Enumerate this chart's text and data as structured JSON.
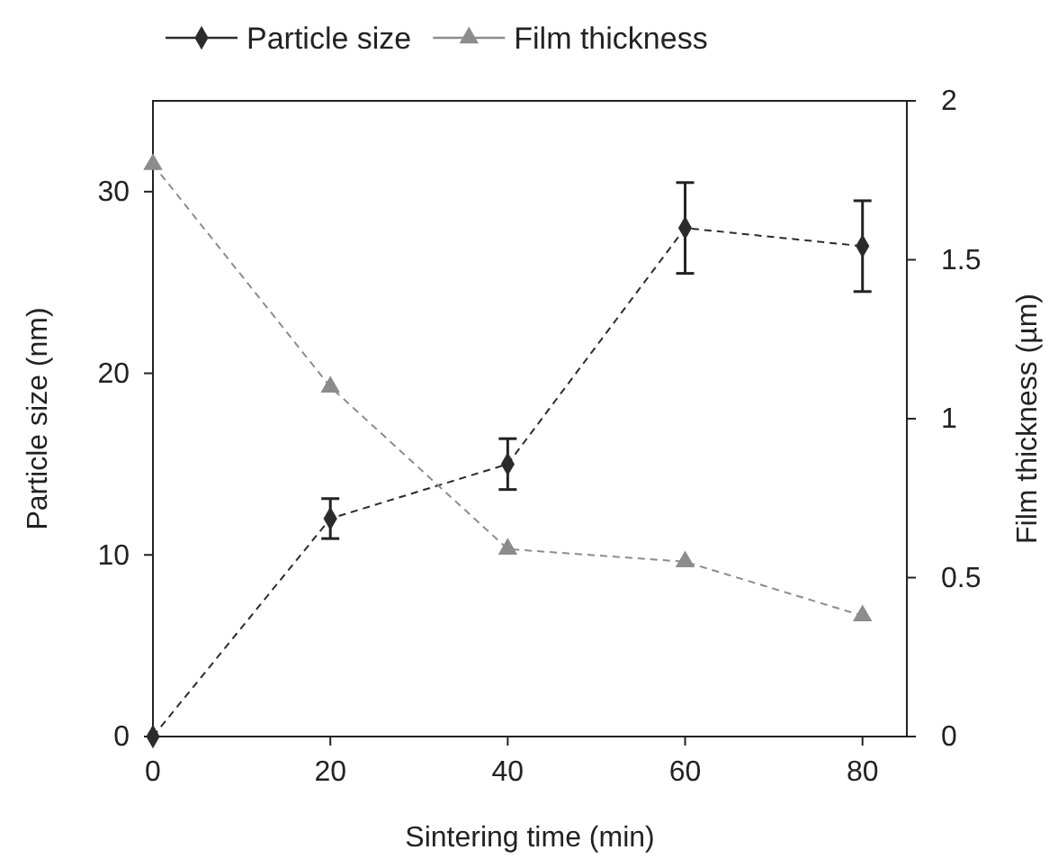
{
  "chart_data": {
    "type": "line",
    "xlabel": "Sintering time (min)",
    "ylabel": "Particle size (nm)",
    "y2label": "Film thickness (µm)",
    "x": [
      0,
      20,
      40,
      60,
      80
    ],
    "xlim": [
      0,
      85
    ],
    "xticks": [
      0,
      20,
      40,
      60,
      80
    ],
    "ylim": [
      0,
      35
    ],
    "yticks": [
      0,
      10,
      20,
      30
    ],
    "y2lim": [
      0,
      2
    ],
    "y2ticks": [
      0,
      {
        "value": 0.5,
        "label": "0.5"
      },
      1,
      {
        "value": 1.5,
        "label": "1.5"
      },
      2
    ],
    "legend": "top",
    "line_style": "dashed",
    "grid": false,
    "series": [
      {
        "name": "Particle size",
        "color": "#2b2b2b",
        "marker": "diamond",
        "values": [
          0,
          12,
          15,
          28,
          27
        ],
        "errors": [
          null,
          1.1,
          1.4,
          2.5,
          2.5
        ]
      },
      {
        "name": "Film thickness",
        "color": "#8c8c8c",
        "marker": "triangle",
        "axis": "y2",
        "values": [
          1.8,
          1.1,
          0.59,
          0.55,
          0.38
        ]
      }
    ]
  }
}
